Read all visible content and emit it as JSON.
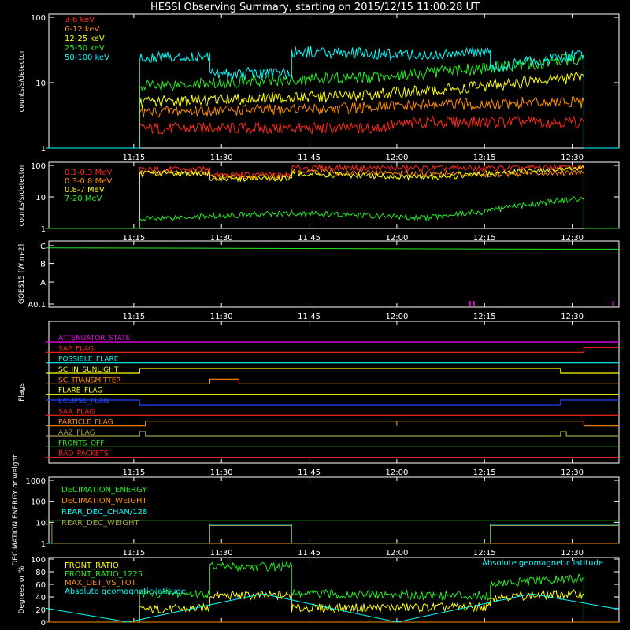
{
  "title": "HESSI Observing Summary, starting on 2015/12/15 11:00:28 UT",
  "time_ticks": [
    "11:15",
    "11:30",
    "11:45",
    "12:00",
    "12:15",
    "12:30"
  ],
  "colors": {
    "red": "#ff2a1a",
    "orange": "#ff8c00",
    "yellow": "#ffff00",
    "green": "#22ee22",
    "cyan": "#00ffff",
    "magenta": "#ff00ff",
    "blue": "#2244ff",
    "olive": "#a0a040",
    "white": "#ffffff"
  },
  "chart_data": [
    {
      "type": "line",
      "panel": "hxr",
      "ylabel": "counts/s/detector",
      "yscale": "log",
      "ylim": [
        1,
        100
      ],
      "ytick_labels": [
        "1",
        "10",
        "100"
      ],
      "x_range_ut": [
        "11:00:28",
        "12:38:00"
      ],
      "series": [
        {
          "name": "3-6 keV",
          "color": "#ff2a1a",
          "t": [
            "11:00",
            "11:16",
            "11:16",
            "11:28",
            "11:42",
            "11:55",
            "12:05",
            "12:16",
            "12:25",
            "12:32",
            "12:32",
            "12:38"
          ],
          "y": [
            1,
            1,
            2.0,
            2.0,
            2.0,
            2.0,
            2.5,
            2.5,
            2.5,
            2.5,
            1,
            1
          ]
        },
        {
          "name": "6-12 keV",
          "color": "#ff8c00",
          "t": [
            "11:00",
            "11:16",
            "11:16",
            "11:28",
            "11:42",
            "11:55",
            "12:05",
            "12:16",
            "12:25",
            "12:32",
            "12:32",
            "12:38"
          ],
          "y": [
            1,
            1,
            3.5,
            3.8,
            3.8,
            4.2,
            4.5,
            4.8,
            5.0,
            5.0,
            1,
            1
          ]
        },
        {
          "name": "12-25 keV",
          "color": "#ffff00",
          "t": [
            "11:00",
            "11:16",
            "11:16",
            "11:28",
            "11:42",
            "11:55",
            "12:05",
            "12:16",
            "12:25",
            "12:32",
            "12:32",
            "12:38"
          ],
          "y": [
            1,
            1,
            5.0,
            5.5,
            6.0,
            6.5,
            7.5,
            9,
            11,
            12,
            1,
            1
          ]
        },
        {
          "name": "25-50 keV",
          "color": "#22ee22",
          "t": [
            "11:00",
            "11:16",
            "11:16",
            "11:28",
            "11:42",
            "11:55",
            "12:05",
            "12:16",
            "12:25",
            "12:32",
            "12:32",
            "12:38"
          ],
          "y": [
            1,
            1,
            9,
            10,
            11,
            12,
            14,
            17,
            20,
            24,
            1,
            1
          ]
        },
        {
          "name": "50-100 keV",
          "color": "#00ffff",
          "t": [
            "11:00",
            "11:16",
            "11:16",
            "11:28",
            "11:28",
            "11:42",
            "11:42",
            "12:05",
            "12:16",
            "12:16",
            "12:25",
            "12:32",
            "12:32",
            "12:38"
          ],
          "y": [
            1,
            1,
            25,
            25,
            14,
            14,
            30,
            26,
            30,
            17,
            22,
            27,
            1,
            1
          ]
        }
      ]
    },
    {
      "type": "line",
      "panel": "gamma",
      "ylabel": "counts/s/detector",
      "yscale": "log",
      "ylim": [
        1,
        100
      ],
      "ytick_labels": [
        "1",
        "10",
        "100"
      ],
      "series": [
        {
          "name": "0.1-0.3 MeV",
          "color": "#ff2a1a",
          "t": [
            "11:00",
            "11:16",
            "11:16",
            "11:28",
            "11:28",
            "11:42",
            "11:42",
            "12:16",
            "12:32",
            "12:32",
            "12:38"
          ],
          "y": [
            1,
            1,
            75,
            75,
            50,
            50,
            85,
            80,
            90,
            1,
            1
          ]
        },
        {
          "name": "0.3-0.8 MeV",
          "color": "#ff8c00",
          "t": [
            "11:00",
            "11:16",
            "11:16",
            "11:28",
            "11:28",
            "11:42",
            "11:42",
            "12:16",
            "12:32",
            "12:32",
            "12:38"
          ],
          "y": [
            1,
            1,
            60,
            60,
            42,
            42,
            62,
            52,
            62,
            1,
            1
          ]
        },
        {
          "name": "0.8-7 MeV",
          "color": "#ffff00",
          "t": [
            "11:00",
            "11:16",
            "11:16",
            "11:28",
            "11:28",
            "11:42",
            "11:42",
            "12:05",
            "12:16",
            "12:32",
            "12:32",
            "12:38"
          ],
          "y": [
            1,
            1,
            55,
            55,
            38,
            38,
            55,
            40,
            55,
            80,
            1,
            1
          ]
        },
        {
          "name": "7-20 MeV",
          "color": "#22ee22",
          "t": [
            "11:00",
            "11:16",
            "11:16",
            "11:28",
            "11:42",
            "12:05",
            "12:16",
            "12:32",
            "12:32",
            "12:38"
          ],
          "y": [
            1,
            1,
            2,
            2.5,
            3,
            2.2,
            3.5,
            9,
            1,
            1
          ]
        }
      ]
    },
    {
      "type": "line",
      "panel": "goes",
      "ylabel": "GOES15 [W m-2]",
      "yscale": "log",
      "ytick_labels": [
        "A0.1",
        "A",
        "B",
        "C"
      ],
      "series": [
        {
          "name": "GOES15",
          "color": "#22ee22",
          "t": [
            "11:00",
            "11:30",
            "12:00",
            "12:30",
            "12:38"
          ],
          "y": [
            7.5e-07,
            7.3e-07,
            7e-07,
            6.8e-07,
            6.8e-07
          ]
        }
      ]
    },
    {
      "type": "line",
      "panel": "flags",
      "ylabel": "Flags",
      "series": [
        {
          "name": "ATTENUATOR_STATE",
          "color": "#ff00ff",
          "t": [
            "11:00",
            "12:38"
          ],
          "y": [
            0,
            0
          ]
        },
        {
          "name": "SAP_FLAG",
          "color": "#ff2a1a",
          "t": [
            "11:00",
            "12:32",
            "12:32",
            "12:38"
          ],
          "y": [
            0,
            0,
            1,
            1
          ]
        },
        {
          "name": "POSSIBLE_FLARE",
          "color": "#00ffff",
          "t": [
            "11:00",
            "12:38"
          ],
          "y": [
            0,
            0
          ]
        },
        {
          "name": "SC_IN_SUNLIGHT",
          "color": "#ffff00",
          "t": [
            "11:00",
            "11:16",
            "11:16",
            "12:28",
            "12:28",
            "12:38"
          ],
          "y": [
            0,
            0,
            1,
            1,
            0,
            0
          ]
        },
        {
          "name": "SC_TRANSMITTER",
          "color": "#ff8c00",
          "t": [
            "11:00",
            "11:28",
            "11:28",
            "11:33",
            "11:33",
            "12:38"
          ],
          "y": [
            0,
            0,
            1,
            1,
            0,
            0
          ]
        },
        {
          "name": "FLARE_FLAG",
          "color": "#ffff00",
          "t": [
            "11:00",
            "12:38"
          ],
          "y": [
            0,
            0
          ]
        },
        {
          "name": "ECLIPSE_FLAG",
          "color": "#2244ff",
          "t": [
            "11:00",
            "11:16",
            "11:16",
            "12:28",
            "12:28",
            "12:38"
          ],
          "y": [
            1,
            1,
            0,
            0,
            1,
            1
          ]
        },
        {
          "name": "SAA_FLAG",
          "color": "#ff2a1a",
          "t": [
            "11:00",
            "12:38"
          ],
          "y": [
            0,
            0
          ]
        },
        {
          "name": "PARTICLE_FLAG",
          "color": "#ff8c00",
          "t": [
            "11:00",
            "11:17",
            "11:17",
            "12:00",
            "12:00",
            "12:00",
            "12:00",
            "12:32",
            "12:32",
            "12:38"
          ],
          "y": [
            0,
            0,
            1,
            1,
            0,
            0,
            1,
            1,
            0,
            0
          ]
        },
        {
          "name": "AAZ_FLAG",
          "color": "#a0a040",
          "t": [
            "11:00",
            "11:16",
            "11:16",
            "11:17",
            "11:17",
            "12:28",
            "12:28",
            "12:29",
            "12:29",
            "12:38"
          ],
          "y": [
            0,
            0,
            1,
            1,
            0,
            0,
            1,
            1,
            0,
            0
          ]
        },
        {
          "name": "FRONTS_OFF",
          "color": "#22ee22",
          "t": [
            "11:00",
            "12:38"
          ],
          "y": [
            0,
            0
          ]
        },
        {
          "name": "BAD_PACKETS",
          "color": "#ff2a1a",
          "t": [
            "11:00",
            "12:38"
          ],
          "y": [
            0,
            0
          ]
        }
      ]
    },
    {
      "type": "line",
      "panel": "decimation",
      "ylabel": "DECIMATION ENERGY or weight",
      "yscale": "log",
      "ylim": [
        1,
        1000
      ],
      "ytick_labels": [
        "1",
        "10",
        "100",
        "1000"
      ],
      "series": [
        {
          "name": "DECIMATION_ENERGY",
          "color": "#22ee22",
          "t": [
            "11:00",
            "12:38"
          ],
          "y": [
            12,
            12
          ]
        },
        {
          "name": "DECIMATION_WEIGHT",
          "color": "#ff8c00",
          "t": [
            "11:00",
            "12:38"
          ],
          "y": [
            1,
            1
          ]
        },
        {
          "name": "REAR_DEC_CHAN/128",
          "color": "#00ffff",
          "t": [
            "11:00",
            "11:28",
            "11:28",
            "11:42",
            "11:42",
            "12:16",
            "12:16",
            "12:38"
          ],
          "y": [
            1,
            1,
            8,
            8,
            1,
            1,
            8,
            8
          ]
        },
        {
          "name": "REAR_DEC_WEIGHT",
          "color": "#a0a040",
          "t": [
            "11:00",
            "11:01",
            "11:01",
            "11:28",
            "11:28",
            "11:42",
            "11:42",
            "12:16",
            "12:16",
            "12:38"
          ],
          "y": [
            8,
            8,
            1,
            1,
            7,
            7,
            1,
            1,
            7,
            7
          ]
        }
      ]
    },
    {
      "type": "line",
      "panel": "ratio",
      "ylabel": "Degrees or %",
      "ylim": [
        0,
        100
      ],
      "ytick_labels": [
        "0",
        "20",
        "40",
        "60",
        "80",
        "100"
      ],
      "annotation": "Absolute geomagnetic latitude",
      "series": [
        {
          "name": "FRONT_RATIO",
          "color": "#ffff00",
          "t": [
            "11:00",
            "11:16",
            "11:16",
            "11:28",
            "11:28",
            "11:42",
            "11:42",
            "12:16",
            "12:16",
            "12:32",
            "12:32",
            "12:38"
          ],
          "y": [
            0,
            0,
            20,
            22,
            42,
            42,
            22,
            24,
            40,
            45,
            0,
            0
          ]
        },
        {
          "name": "FRONT_RATIO_1225",
          "color": "#22ee22",
          "t": [
            "11:00",
            "11:16",
            "11:16",
            "11:28",
            "11:28",
            "11:42",
            "11:42",
            "12:16",
            "12:16",
            "12:32",
            "12:32",
            "12:38"
          ],
          "y": [
            0,
            0,
            45,
            45,
            88,
            88,
            45,
            42,
            60,
            70,
            0,
            0
          ]
        },
        {
          "name": "MAX_DET_VS_TOT",
          "color": "#ff8c00",
          "t": [
            "11:00",
            "12:38"
          ],
          "y": [
            0,
            0
          ]
        },
        {
          "name": "Absolute geomagnetic latitude",
          "color": "#00ffff",
          "t": [
            "11:00",
            "11:14",
            "11:37",
            "12:00",
            "12:23",
            "12:37",
            "12:38"
          ],
          "y": [
            22,
            0,
            45,
            0,
            45,
            22,
            22
          ]
        }
      ]
    }
  ]
}
